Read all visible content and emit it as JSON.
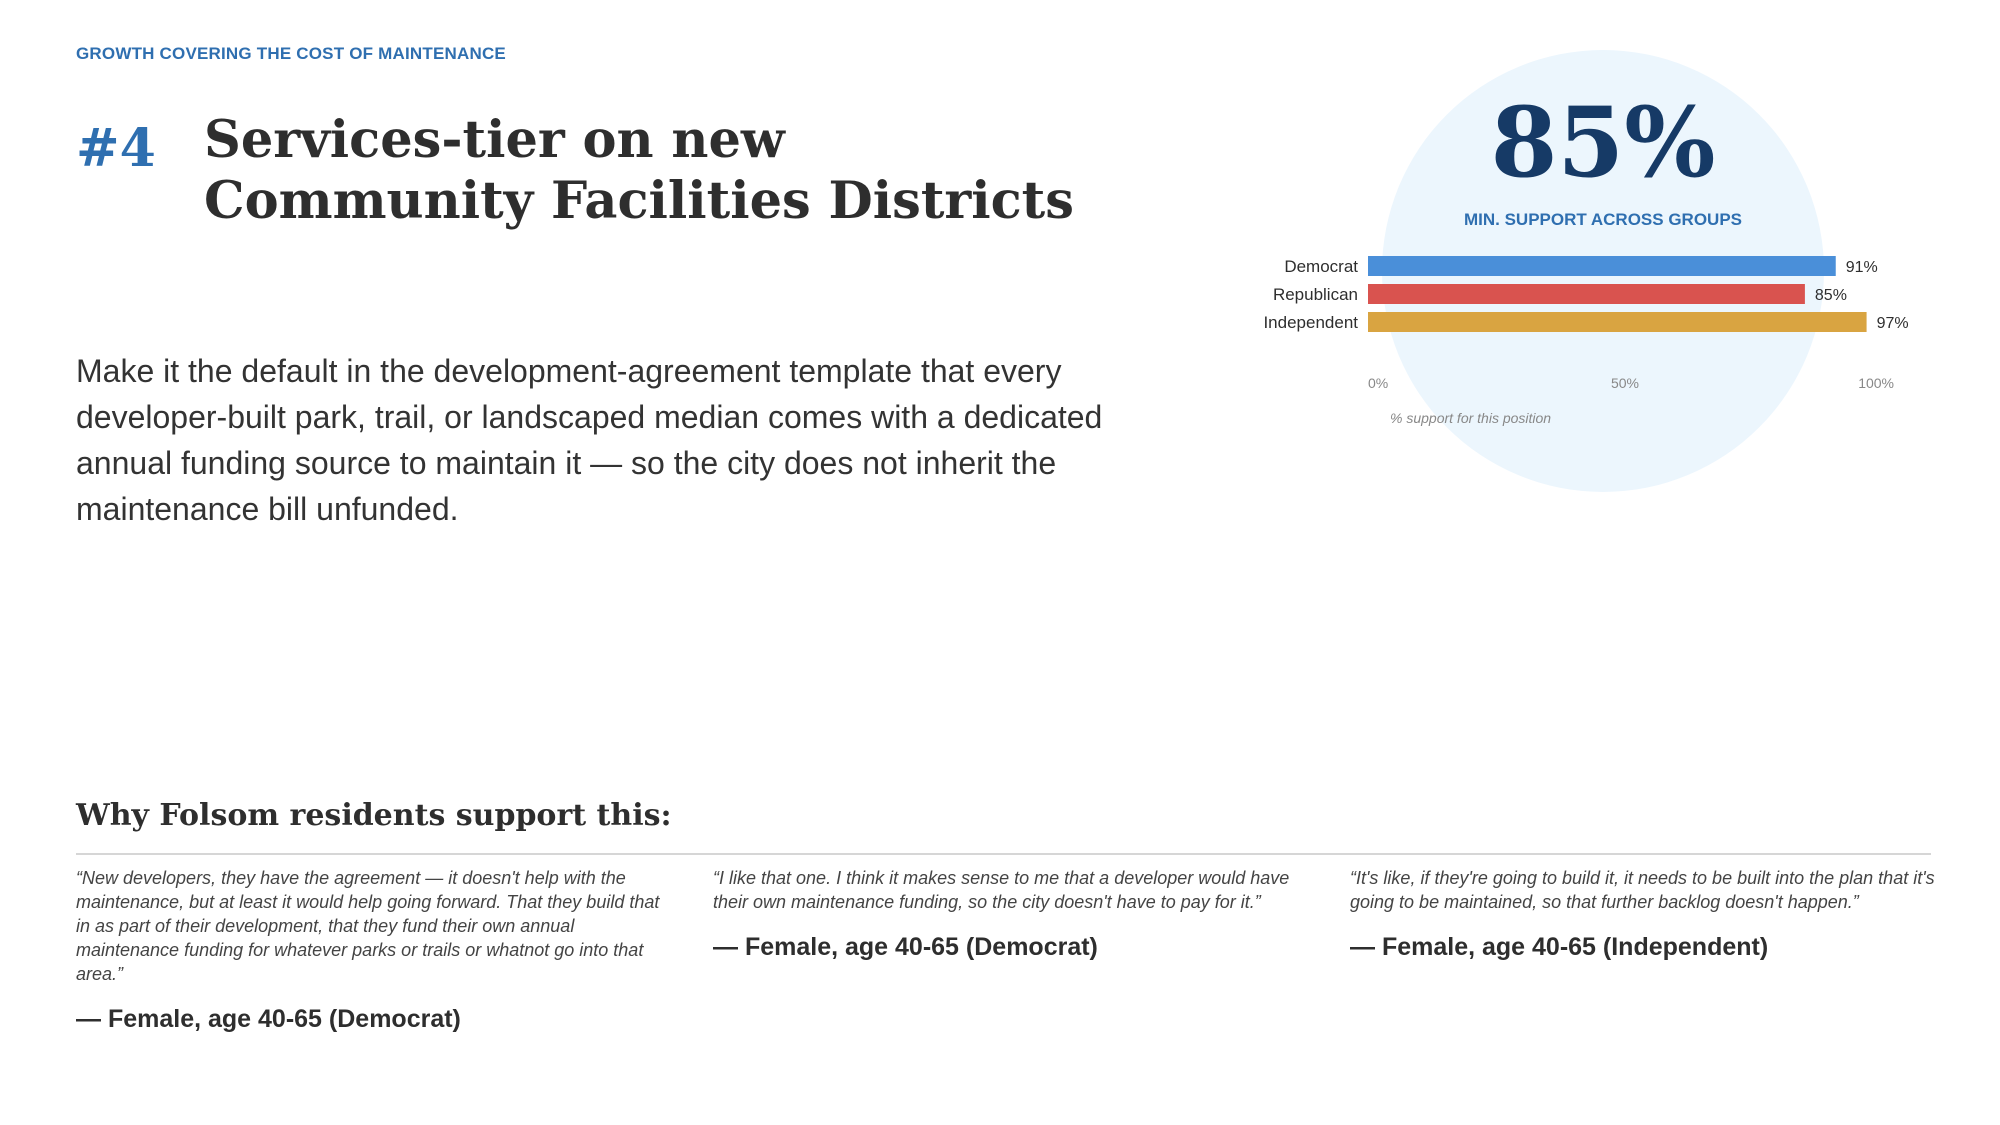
{
  "header": {
    "eyebrow": "GROWTH COVERING THE COST OF MAINTENANCE",
    "number": "#4",
    "title": "Services-tier on new Community Facilities Districts"
  },
  "body": {
    "text": "Make it the default in the development-agreement template that every developer-built park, trail, or landscaped median comes with a dedicated annual funding source to maintain it — so the city does not inherit the maintenance bill unfunded."
  },
  "highlight": {
    "value": "85%",
    "label": "MIN. SUPPORT ACROSS GROUPS"
  },
  "chart_data": {
    "type": "bar",
    "orientation": "horizontal",
    "categories": [
      "Democrat",
      "Republican",
      "Independent"
    ],
    "values": [
      91,
      85,
      97
    ],
    "data_labels": [
      "91%",
      "85%",
      "97%"
    ],
    "colors": [
      "#4a8fd9",
      "#d9534f",
      "#d9a441"
    ],
    "xlim": [
      0,
      100
    ],
    "ticks": [
      0,
      50,
      100
    ],
    "tick_labels": [
      "0%",
      "50%",
      "100%"
    ],
    "xlabel": "% support for this position",
    "grid": false
  },
  "support": {
    "heading": "Why Folsom residents support this:",
    "quotes": [
      {
        "text": "“New developers, they have the agreement — it doesn't help with the maintenance, but at least it would help going forward. That they build that in as part of their development, that they fund their own annual maintenance funding for whatever parks or trails or whatnot go into that area.”",
        "attribution": "— Female, age 40-65 (Democrat)"
      },
      {
        "text": "“I like that one. I think it makes sense to me that a developer would have their own maintenance funding, so the city doesn't have to pay for it.”",
        "attribution": "— Female, age 40-65 (Democrat)"
      },
      {
        "text": "“It's like, if they're going to build it, it needs to be built into the plan that it's going to be maintained, so that further backlog doesn't happen.”",
        "attribution": "— Female, age 40-65 (Independent)"
      }
    ]
  }
}
